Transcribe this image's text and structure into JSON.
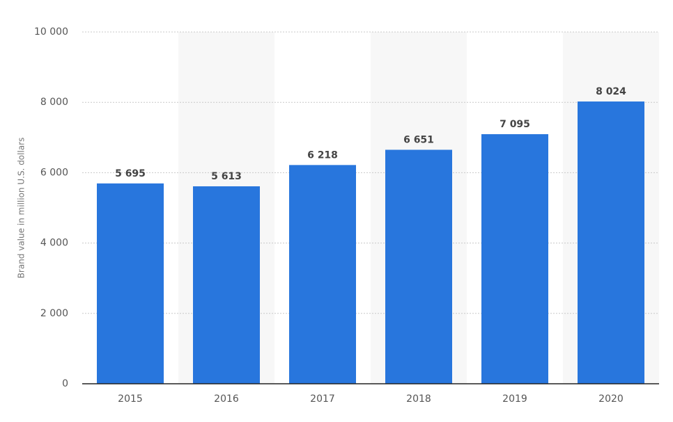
{
  "chart_data": {
    "type": "bar",
    "y_label": "Brand value in million U.S. dollars",
    "categories": [
      "2015",
      "2016",
      "2017",
      "2018",
      "2019",
      "2020"
    ],
    "values": [
      5695,
      5613,
      6218,
      6651,
      7095,
      8024
    ],
    "value_labels": [
      "5 695",
      "5 613",
      "6 218",
      "6 651",
      "7 095",
      "8 024"
    ],
    "color": "#2876dd",
    "ylim": [
      0,
      10000
    ],
    "yticks": [
      0,
      {
        "value": 2000,
        "label": "2 000"
      },
      {
        "value": 4000,
        "label": "4 000"
      },
      {
        "value": 6000,
        "label": "6 000"
      },
      {
        "value": 8000,
        "label": "8 000"
      },
      {
        "value": 10000,
        "label": "10 000"
      }
    ],
    "grid": true
  }
}
